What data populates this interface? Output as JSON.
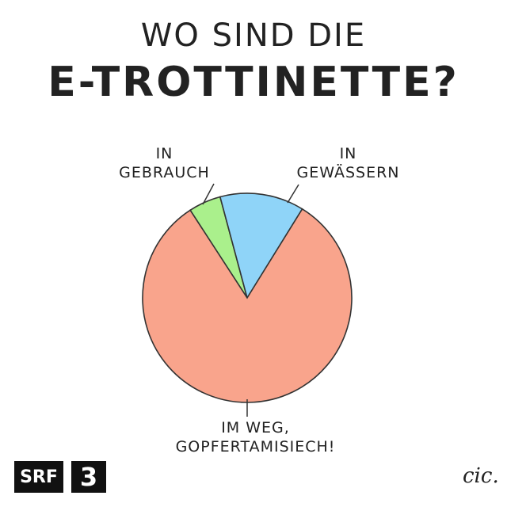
{
  "chart_data": {
    "type": "pie",
    "title": "WO SIND DIE",
    "subtitle": "E-TROTTINETTE?",
    "categories": [
      "IN GEBRAUCH",
      "IN GEWÄSSERN",
      "IM WEG, GOPFERTAMISIECH!"
    ],
    "values": [
      5,
      13,
      82
    ],
    "colors": [
      "#aaf08c",
      "#8fd4f8",
      "#f9a48c"
    ]
  },
  "branding": [
    "SRF",
    "3"
  ],
  "signature": "cic."
}
